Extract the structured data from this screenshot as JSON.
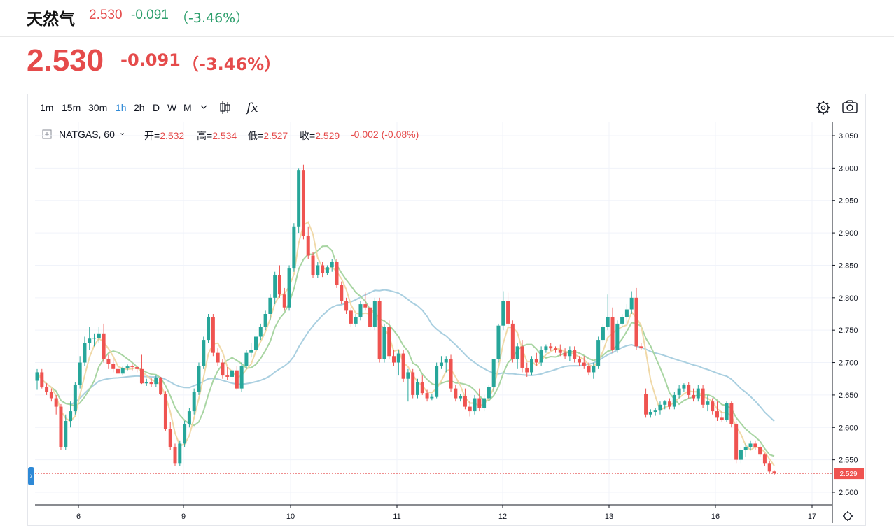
{
  "header": {
    "name": "天然气",
    "price": "2.530",
    "change": "-0.091",
    "change_pct": "（-3.46%）"
  },
  "quote": {
    "price": "2.530",
    "change": "-0.091",
    "change_pct": "（-3.46%）"
  },
  "toolbar": {
    "intervals": [
      "1m",
      "15m",
      "30m",
      "1h",
      "2h",
      "D",
      "W",
      "M"
    ],
    "active_interval": "1h",
    "chevron_icon": "chevron-down-icon",
    "candles_icon": "candlestick-icon",
    "indicators_label": "fx",
    "settings_icon": "gear-icon",
    "snapshot_icon": "camera-icon"
  },
  "legend": {
    "symbol": "NATGAS, 60",
    "open_label": "开=",
    "open": "2.532",
    "high_label": "高=",
    "high": "2.534",
    "low_label": "低=",
    "low": "2.527",
    "close_label": "收=",
    "close": "2.529",
    "change": "-0.002 (-0.08%)"
  },
  "colors": {
    "up": "#26a69a",
    "down": "#ef5350",
    "price_red": "#e54b4b",
    "change_green": "#2a9d6a",
    "ma_fast": "#f0d9a8",
    "ma_mid": "#a8d5a2",
    "ma_slow": "#a9cfe0"
  },
  "chart_data": {
    "type": "candlestick",
    "symbol": "NATGAS",
    "interval": "60",
    "last_price_label": "2.529",
    "last_price": 2.529,
    "ylim": [
      2.48,
      3.07
    ],
    "y_ticks": [
      "3.050",
      "3.000",
      "2.950",
      "2.900",
      "2.850",
      "2.800",
      "2.750",
      "2.700",
      "2.650",
      "2.600",
      "2.550",
      "2.500"
    ],
    "x_ticks": [
      "6",
      "9",
      "10",
      "11",
      "12",
      "13",
      "16",
      "17"
    ],
    "candles": [
      [
        2.672,
        2.69,
        2.658,
        2.685
      ],
      [
        2.685,
        2.69,
        2.66,
        2.662
      ],
      [
        2.662,
        2.668,
        2.65,
        2.655
      ],
      [
        2.655,
        2.66,
        2.64,
        2.645
      ],
      [
        2.645,
        2.65,
        2.62,
        2.632
      ],
      [
        2.632,
        2.636,
        2.565,
        2.57
      ],
      [
        2.57,
        2.62,
        2.565,
        2.61
      ],
      [
        2.61,
        2.64,
        2.6,
        2.625
      ],
      [
        2.625,
        2.67,
        2.62,
        2.665
      ],
      [
        2.665,
        2.71,
        2.66,
        2.7
      ],
      [
        2.7,
        2.74,
        2.695,
        2.73
      ],
      [
        2.73,
        2.755,
        2.72,
        2.737
      ],
      [
        2.737,
        2.745,
        2.725,
        2.738
      ],
      [
        2.738,
        2.755,
        2.73,
        2.745
      ],
      [
        2.745,
        2.76,
        2.7,
        2.705
      ],
      [
        2.705,
        2.712,
        2.69,
        2.698
      ],
      [
        2.698,
        2.705,
        2.685,
        2.69
      ],
      [
        2.69,
        2.695,
        2.678,
        2.683
      ],
      [
        2.683,
        2.695,
        2.68,
        2.692
      ],
      [
        2.692,
        2.697,
        2.688,
        2.694
      ],
      [
        2.694,
        2.698,
        2.688,
        2.693
      ],
      [
        2.693,
        2.695,
        2.685,
        2.69
      ],
      [
        2.69,
        2.712,
        2.667,
        2.668
      ],
      [
        2.668,
        2.675,
        2.664,
        2.67
      ],
      [
        2.67,
        2.676,
        2.662,
        2.667
      ],
      [
        2.667,
        2.68,
        2.662,
        2.676
      ],
      [
        2.676,
        2.678,
        2.65,
        2.652
      ],
      [
        2.652,
        2.656,
        2.595,
        2.598
      ],
      [
        2.598,
        2.608,
        2.565,
        2.57
      ],
      [
        2.57,
        2.575,
        2.54,
        2.545
      ],
      [
        2.545,
        2.58,
        2.54,
        2.575
      ],
      [
        2.575,
        2.61,
        2.57,
        2.605
      ],
      [
        2.605,
        2.63,
        2.6,
        2.625
      ],
      [
        2.625,
        2.66,
        2.62,
        2.655
      ],
      [
        2.655,
        2.7,
        2.65,
        2.695
      ],
      [
        2.695,
        2.74,
        2.69,
        2.735
      ],
      [
        2.735,
        2.775,
        2.73,
        2.77
      ],
      [
        2.77,
        2.775,
        2.71,
        2.715
      ],
      [
        2.715,
        2.722,
        2.695,
        2.7
      ],
      [
        2.7,
        2.705,
        2.675,
        2.68
      ],
      [
        2.68,
        2.693,
        2.673,
        2.678
      ],
      [
        2.678,
        2.69,
        2.673,
        2.688
      ],
      [
        2.688,
        2.695,
        2.658,
        2.66
      ],
      [
        2.66,
        2.7,
        2.655,
        2.695
      ],
      [
        2.695,
        2.72,
        2.69,
        2.715
      ],
      [
        2.715,
        2.73,
        2.708,
        2.72
      ],
      [
        2.72,
        2.745,
        2.715,
        2.74
      ],
      [
        2.74,
        2.76,
        2.735,
        2.755
      ],
      [
        2.755,
        2.78,
        2.75,
        2.775
      ],
      [
        2.775,
        2.805,
        2.765,
        2.8
      ],
      [
        2.8,
        2.84,
        2.79,
        2.835
      ],
      [
        2.835,
        2.85,
        2.8,
        2.805
      ],
      [
        2.805,
        2.815,
        2.78,
        2.785
      ],
      [
        2.785,
        2.85,
        2.78,
        2.845
      ],
      [
        2.845,
        2.915,
        2.84,
        2.91
      ],
      [
        2.91,
        3.0,
        2.9,
        2.997
      ],
      [
        2.997,
        3.005,
        2.89,
        2.895
      ],
      [
        2.895,
        2.91,
        2.86,
        2.865
      ],
      [
        2.865,
        2.87,
        2.83,
        2.835
      ],
      [
        2.835,
        2.855,
        2.83,
        2.85
      ],
      [
        2.85,
        2.855,
        2.832,
        2.838
      ],
      [
        2.838,
        2.85,
        2.835,
        2.847
      ],
      [
        2.847,
        2.86,
        2.84,
        2.855
      ],
      [
        2.855,
        2.86,
        2.815,
        2.82
      ],
      [
        2.82,
        2.825,
        2.79,
        2.795
      ],
      [
        2.795,
        2.8,
        2.775,
        2.78
      ],
      [
        2.78,
        2.785,
        2.755,
        2.76
      ],
      [
        2.76,
        2.775,
        2.755,
        2.77
      ],
      [
        2.77,
        2.795,
        2.765,
        2.79
      ],
      [
        2.79,
        2.808,
        2.78,
        2.785
      ],
      [
        2.785,
        2.79,
        2.75,
        2.755
      ],
      [
        2.755,
        2.8,
        2.75,
        2.795
      ],
      [
        2.795,
        2.8,
        2.7,
        2.705
      ],
      [
        2.705,
        2.76,
        2.7,
        2.755
      ],
      [
        2.755,
        2.765,
        2.705,
        2.71
      ],
      [
        2.71,
        2.72,
        2.695,
        2.7
      ],
      [
        2.7,
        2.72,
        2.68,
        2.714
      ],
      [
        2.714,
        2.72,
        2.67,
        2.675
      ],
      [
        2.675,
        2.69,
        2.64,
        2.685
      ],
      [
        2.685,
        2.69,
        2.645,
        2.65
      ],
      [
        2.65,
        2.675,
        2.645,
        2.67
      ],
      [
        2.67,
        2.68,
        2.65,
        2.653
      ],
      [
        2.653,
        2.658,
        2.64,
        2.645
      ],
      [
        2.645,
        2.652,
        2.642,
        2.647
      ],
      [
        2.647,
        2.7,
        2.645,
        2.695
      ],
      [
        2.695,
        2.71,
        2.69,
        2.7
      ],
      [
        2.7,
        2.71,
        2.685,
        2.705
      ],
      [
        2.705,
        2.712,
        2.655,
        2.66
      ],
      [
        2.66,
        2.665,
        2.64,
        2.645
      ],
      [
        2.645,
        2.652,
        2.64,
        2.648
      ],
      [
        2.648,
        2.66,
        2.628,
        2.632
      ],
      [
        2.632,
        2.64,
        2.617,
        2.625
      ],
      [
        2.625,
        2.65,
        2.62,
        2.645
      ],
      [
        2.645,
        2.66,
        2.625,
        2.63
      ],
      [
        2.63,
        2.65,
        2.625,
        2.645
      ],
      [
        2.645,
        2.665,
        2.64,
        2.662
      ],
      [
        2.662,
        2.7,
        2.655,
        2.705
      ],
      [
        2.705,
        2.76,
        2.7,
        2.757
      ],
      [
        2.757,
        2.81,
        2.75,
        2.795
      ],
      [
        2.795,
        2.808,
        2.755,
        2.76
      ],
      [
        2.76,
        2.765,
        2.7,
        2.705
      ],
      [
        2.705,
        2.73,
        2.69,
        2.725
      ],
      [
        2.725,
        2.735,
        2.685,
        2.692
      ],
      [
        2.692,
        2.7,
        2.678,
        2.685
      ],
      [
        2.685,
        2.71,
        2.68,
        2.705
      ],
      [
        2.705,
        2.715,
        2.695,
        2.7
      ],
      [
        2.7,
        2.725,
        2.695,
        2.72
      ],
      [
        2.72,
        2.728,
        2.715,
        2.725
      ],
      [
        2.725,
        2.73,
        2.718,
        2.722
      ],
      [
        2.722,
        2.725,
        2.715,
        2.72
      ],
      [
        2.72,
        2.728,
        2.71,
        2.715
      ],
      [
        2.715,
        2.722,
        2.705,
        2.71
      ],
      [
        2.71,
        2.725,
        2.702,
        2.72
      ],
      [
        2.72,
        2.725,
        2.7,
        2.705
      ],
      [
        2.705,
        2.71,
        2.695,
        2.7
      ],
      [
        2.7,
        2.71,
        2.69,
        2.695
      ],
      [
        2.695,
        2.7,
        2.68,
        2.685
      ],
      [
        2.685,
        2.7,
        2.675,
        2.695
      ],
      [
        2.695,
        2.74,
        2.69,
        2.735
      ],
      [
        2.735,
        2.76,
        2.73,
        2.755
      ],
      [
        2.755,
        2.805,
        2.75,
        2.77
      ],
      [
        2.77,
        2.785,
        2.715,
        2.72
      ],
      [
        2.72,
        2.765,
        2.715,
        2.76
      ],
      [
        2.76,
        2.775,
        2.755,
        2.77
      ],
      [
        2.77,
        2.79,
        2.76,
        2.782
      ],
      [
        2.782,
        2.81,
        2.775,
        2.8
      ],
      [
        2.8,
        2.815,
        2.72,
        2.725
      ],
      [
        2.725,
        2.73,
        2.72,
        2.722
      ],
      [
        2.652,
        2.66,
        2.615,
        2.62
      ],
      [
        2.62,
        2.628,
        2.615,
        2.624
      ],
      [
        2.624,
        2.63,
        2.618,
        2.626
      ],
      [
        2.626,
        2.64,
        2.62,
        2.635
      ],
      [
        2.635,
        2.642,
        2.628,
        2.64
      ],
      [
        2.64,
        2.645,
        2.628,
        2.632
      ],
      [
        2.632,
        2.655,
        2.628,
        2.65
      ],
      [
        2.65,
        2.665,
        2.645,
        2.66
      ],
      [
        2.66,
        2.668,
        2.655,
        2.665
      ],
      [
        2.665,
        2.67,
        2.645,
        2.65
      ],
      [
        2.65,
        2.66,
        2.64,
        2.645
      ],
      [
        2.645,
        2.665,
        2.64,
        2.66
      ],
      [
        2.66,
        2.665,
        2.63,
        2.635
      ],
      [
        2.635,
        2.65,
        2.625,
        2.64
      ],
      [
        2.64,
        2.645,
        2.62,
        2.625
      ],
      [
        2.625,
        2.64,
        2.61,
        2.615
      ],
      [
        2.615,
        2.625,
        2.608,
        2.612
      ],
      [
        2.612,
        2.64,
        2.608,
        2.638
      ],
      [
        2.638,
        2.64,
        2.6,
        2.605
      ],
      [
        2.605,
        2.61,
        2.545,
        2.55
      ],
      [
        2.55,
        2.57,
        2.545,
        2.565
      ],
      [
        2.565,
        2.575,
        2.555,
        2.57
      ],
      [
        2.57,
        2.58,
        2.565,
        2.575
      ],
      [
        2.575,
        2.58,
        2.565,
        2.57
      ],
      [
        2.57,
        2.575,
        2.555,
        2.558
      ],
      [
        2.558,
        2.56,
        2.54,
        2.545
      ],
      [
        2.545,
        2.548,
        2.53,
        2.532
      ],
      [
        2.532,
        2.534,
        2.527,
        2.529
      ]
    ]
  }
}
